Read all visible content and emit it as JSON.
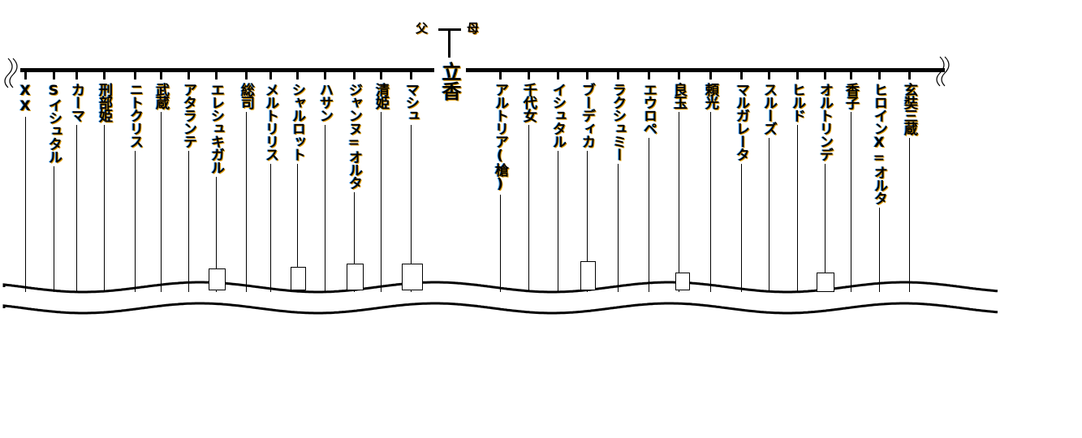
{
  "parents": {
    "father": "父",
    "mother": "母"
  },
  "center": "立香",
  "left": [
    {
      "name": "XX"
    },
    {
      "name": "Sイシュタル"
    },
    {
      "name": "カーマ"
    },
    {
      "name": "刑部姫"
    },
    {
      "name": "ニトクリス"
    },
    {
      "name": "武蔵"
    },
    {
      "name": "アタランテ"
    },
    {
      "name": "エレシュキガル",
      "box": true
    },
    {
      "name": "総司"
    },
    {
      "name": "メルトリリス"
    },
    {
      "name": "シャルロット",
      "box": true
    },
    {
      "name": "ハサン"
    },
    {
      "name": "ジャンヌ=オルタ",
      "box": true
    },
    {
      "name": "清姫"
    },
    {
      "name": "マシュ",
      "box": true
    }
  ],
  "right": [
    {
      "name": "アルトリア(槍)"
    },
    {
      "name": "千代女"
    },
    {
      "name": "イシュタル"
    },
    {
      "name": "ブーディカ",
      "box": true
    },
    {
      "name": "ラクシュミー"
    },
    {
      "name": "エウロペ"
    },
    {
      "name": "良玉",
      "box": true
    },
    {
      "name": "頼光"
    },
    {
      "name": "マルガレータ"
    },
    {
      "name": "スルーズ"
    },
    {
      "name": "ヒルド"
    },
    {
      "name": "オルトリンデ",
      "box": true
    },
    {
      "name": "香子"
    },
    {
      "name": "ヒロインX=オルタ"
    },
    {
      "name": "玄奘三蔵"
    }
  ]
}
